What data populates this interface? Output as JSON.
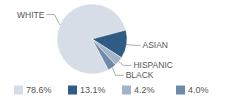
{
  "chart_data": {
    "type": "pie",
    "categories": [
      "WHITE",
      "ASIAN",
      "HISPANIC",
      "BLACK"
    ],
    "values": [
      78.6,
      13.1,
      4.2,
      4.0
    ],
    "value_labels": [
      "78.6%",
      "13.1%",
      "4.2%",
      "4.0%"
    ],
    "colors": [
      "#d6dde6",
      "#2f5b84",
      "#a3b4c8",
      "#6e8aa8"
    ],
    "legend": "bottom"
  }
}
